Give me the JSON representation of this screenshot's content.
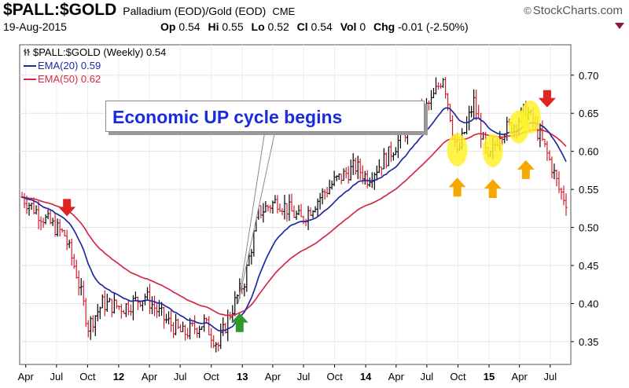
{
  "header": {
    "symbol": "$PALL:$GOLD",
    "description": "Palladium (EOD)/Gold (EOD)",
    "exchange": "CME",
    "brand": "StockCharts.com",
    "date": "19-Aug-2015",
    "ohlc": [
      {
        "label": "Op",
        "value": "0.54"
      },
      {
        "label": "Hi",
        "value": "0.55"
      },
      {
        "label": "Lo",
        "value": "0.52"
      },
      {
        "label": "Cl",
        "value": "0.54"
      },
      {
        "label": "Vol",
        "value": "0"
      },
      {
        "label": "Chg",
        "value": "-0.01 (-2.50%)"
      }
    ]
  },
  "legend": {
    "price": "$PALL:$GOLD (Weekly) 0.54",
    "ema20": "EMA(20) 0.59",
    "ema50": "EMA(50) 0.62"
  },
  "annotation": "Economic UP cycle begins",
  "colors": {
    "bars": "#000000",
    "down_bars": "#d01f2f",
    "ema20": "#1f2aa0",
    "ema50": "#d42a45",
    "highlight": "#fff22a",
    "arrow_down": "#e02424",
    "arrow_up_green": "#2f9a2a",
    "arrow_up_orange": "#f6a800"
  },
  "chart_data": {
    "type": "bar",
    "title": "$PALL:$GOLD",
    "subtitle": "Palladium (EOD)/Gold (EOD)",
    "x_tick_labels": [
      "Apr",
      "Jul",
      "Oct",
      "12",
      "Apr",
      "Jul",
      "Oct",
      "13",
      "Apr",
      "Jul",
      "Oct",
      "14",
      "Apr",
      "Jul",
      "Oct",
      "15",
      "Apr",
      "Jul"
    ],
    "y_ticks": [
      0.35,
      0.4,
      0.45,
      0.5,
      0.55,
      0.6,
      0.65,
      0.7
    ],
    "ylim": [
      0.32,
      0.74
    ],
    "xlim": [
      "2011-03-14",
      "2015-08-31"
    ],
    "close_anchors": [
      {
        "date": "2011-03-21",
        "close": 0.54
      },
      {
        "date": "2011-05-30",
        "close": 0.51
      },
      {
        "date": "2011-07-25",
        "close": 0.49
      },
      {
        "date": "2011-08-29",
        "close": 0.44
      },
      {
        "date": "2011-10-03",
        "close": 0.37
      },
      {
        "date": "2011-11-14",
        "close": 0.4
      },
      {
        "date": "2012-01-16",
        "close": 0.395
      },
      {
        "date": "2012-03-19",
        "close": 0.41
      },
      {
        "date": "2012-05-14",
        "close": 0.38
      },
      {
        "date": "2012-07-09",
        "close": 0.36
      },
      {
        "date": "2012-09-10",
        "close": 0.375
      },
      {
        "date": "2012-10-22",
        "close": 0.345
      },
      {
        "date": "2012-11-19",
        "close": 0.38
      },
      {
        "date": "2013-01-07",
        "close": 0.43
      },
      {
        "date": "2013-02-18",
        "close": 0.52
      },
      {
        "date": "2013-04-15",
        "close": 0.535
      },
      {
        "date": "2013-06-24",
        "close": 0.51
      },
      {
        "date": "2013-08-19",
        "close": 0.54
      },
      {
        "date": "2013-09-30",
        "close": 0.56
      },
      {
        "date": "2013-12-02",
        "close": 0.58
      },
      {
        "date": "2014-01-06",
        "close": 0.565
      },
      {
        "date": "2014-03-10",
        "close": 0.595
      },
      {
        "date": "2014-05-19",
        "close": 0.64
      },
      {
        "date": "2014-07-14",
        "close": 0.665
      },
      {
        "date": "2014-08-18",
        "close": 0.7
      },
      {
        "date": "2014-09-29",
        "close": 0.595
      },
      {
        "date": "2014-11-17",
        "close": 0.665
      },
      {
        "date": "2014-12-29",
        "close": 0.585
      },
      {
        "date": "2015-02-02",
        "close": 0.625
      },
      {
        "date": "2015-03-16",
        "close": 0.635
      },
      {
        "date": "2015-04-20",
        "close": 0.655
      },
      {
        "date": "2015-06-01",
        "close": 0.62
      },
      {
        "date": "2015-07-06",
        "close": 0.58
      },
      {
        "date": "2015-07-27",
        "close": 0.55
      },
      {
        "date": "2015-08-17",
        "close": 0.535
      }
    ],
    "ema20_last": 0.59,
    "ema50_last": 0.62,
    "markers": [
      {
        "type": "down-arrow",
        "color": "red",
        "date": "2011-08-01",
        "y": 0.525
      },
      {
        "type": "up-arrow",
        "color": "green",
        "date": "2012-12-24",
        "y": 0.375
      },
      {
        "type": "highlight",
        "color": "yellow",
        "date": "2014-09-29",
        "y": 0.602
      },
      {
        "type": "highlight",
        "color": "yellow",
        "date": "2015-01-12",
        "y": 0.601
      },
      {
        "type": "highlight",
        "color": "yellow",
        "date": "2015-03-30",
        "y": 0.632
      },
      {
        "type": "highlight",
        "color": "yellow",
        "date": "2015-05-04",
        "y": 0.645
      },
      {
        "type": "up-arrow",
        "color": "orange",
        "date": "2014-09-29",
        "y": 0.553
      },
      {
        "type": "up-arrow",
        "color": "orange",
        "date": "2015-01-12",
        "y": 0.551
      },
      {
        "type": "up-arrow",
        "color": "orange",
        "date": "2015-04-20",
        "y": 0.576
      },
      {
        "type": "down-arrow",
        "color": "red",
        "date": "2015-06-22",
        "y": 0.668
      }
    ]
  }
}
